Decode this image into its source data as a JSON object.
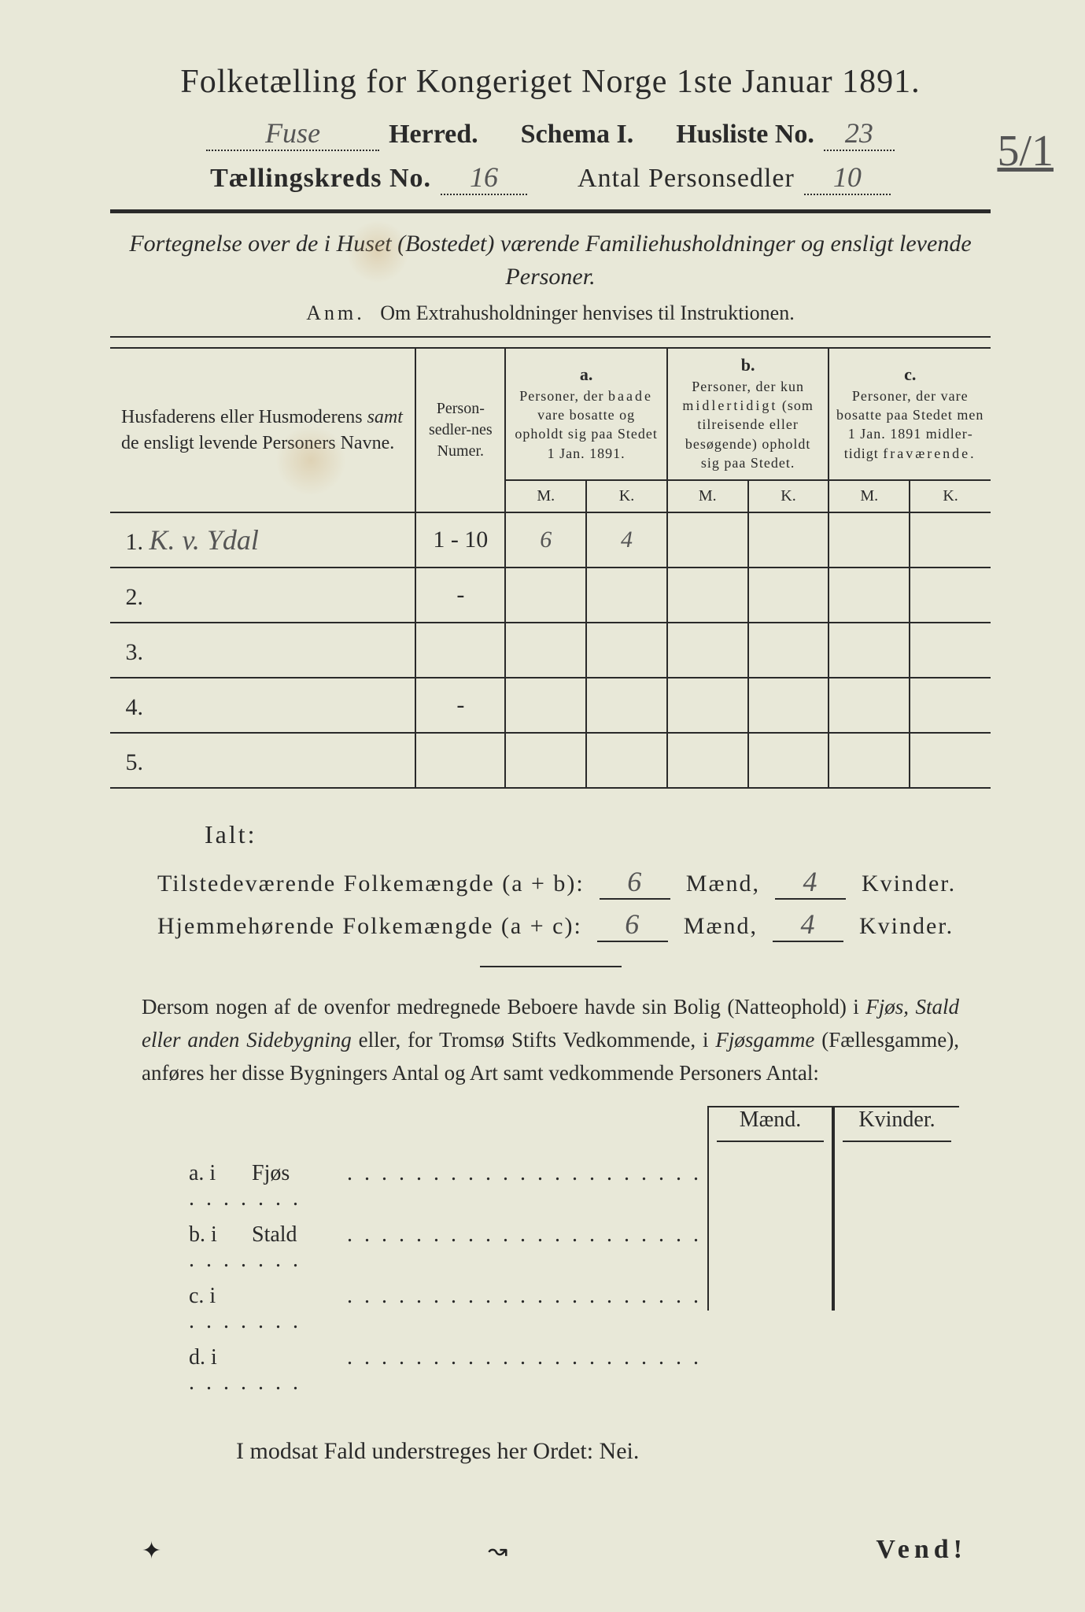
{
  "title": "Folketælling for Kongeriget Norge 1ste Januar 1891.",
  "header": {
    "herred_hand": "Fuse",
    "herred_label": "Herred.",
    "schema": "Schema I.",
    "husliste_label": "Husliste No.",
    "husliste_hand": "23",
    "kreds_label": "Tællingskreds No.",
    "kreds_hand": "16",
    "antal_label": "Antal Personsedler",
    "antal_hand": "10",
    "side_annotation": "5/1"
  },
  "subtitle": "Fortegnelse over de i Huset (Bostedet) værende Familiehusholdninger og ensligt levende Personer.",
  "anm_prefix": "Anm.",
  "anm_text": "Om Extrahusholdninger henvises til Instruktionen.",
  "table": {
    "col_name": "Husfaderens eller Husmoderens samt de ensligt levende Personers Navne.",
    "col_num": "Person-sedler-nes Numer.",
    "col_a_letter": "a.",
    "col_a": "Personer, der baade vare bosatte og opholdt sig paa Stedet 1 Jan. 1891.",
    "col_b_letter": "b.",
    "col_b": "Personer, der kun midlertidigt (som tilreisende eller besøgende) opholdt sig paa Stedet.",
    "col_c_letter": "c.",
    "col_c": "Personer, der vare bosatte paa Stedet men 1 Jan. 1891 midlertidigt fraværende.",
    "M": "M.",
    "K": "K.",
    "rows": [
      {
        "n": "1.",
        "name": "K. v. Ydal",
        "num": "1 - 10",
        "aM": "6",
        "aK": "4",
        "bM": "",
        "bK": "",
        "cM": "",
        "cK": ""
      },
      {
        "n": "2.",
        "name": "",
        "num": "-",
        "aM": "",
        "aK": "",
        "bM": "",
        "bK": "",
        "cM": "",
        "cK": ""
      },
      {
        "n": "3.",
        "name": "",
        "num": "",
        "aM": "",
        "aK": "",
        "bM": "",
        "bK": "",
        "cM": "",
        "cK": ""
      },
      {
        "n": "4.",
        "name": "",
        "num": "-",
        "aM": "",
        "aK": "",
        "bM": "",
        "bK": "",
        "cM": "",
        "cK": ""
      },
      {
        "n": "5.",
        "name": "",
        "num": "",
        "aM": "",
        "aK": "",
        "bM": "",
        "bK": "",
        "cM": "",
        "cK": ""
      }
    ]
  },
  "ialt": "Ialt:",
  "totals": {
    "line1_label": "Tilstedeværende Folkemængde (a + b):",
    "line2_label": "Hjemmehørende Folkemængde (a + c):",
    "maend": "Mænd,",
    "kvinder": "Kvinder.",
    "t_m": "6",
    "t_k": "4",
    "h_m": "6",
    "h_k": "4"
  },
  "para": "Dersom nogen af de ovenfor medregnede Beboere havde sin Bolig (Natteophold) i Fjøs, Stald eller anden Sidebygning eller, for Tromsø Stifts Vedkommende, i Fjøsgamme (Fællesgamme), anføres her disse Bygningers Antal og Art samt vedkommende Personers Antal:",
  "btable": {
    "maend": "Mænd.",
    "kvinder": "Kvinder.",
    "rows": [
      {
        "k": "a.  i",
        "label": "Fjøs"
      },
      {
        "k": "b.  i",
        "label": "Stald"
      },
      {
        "k": "c.  i",
        "label": ""
      },
      {
        "k": "d.  i",
        "label": ""
      }
    ]
  },
  "nei": "I modsat Fald understreges her Ordet: Nei.",
  "vend": "Vend!",
  "colors": {
    "paper": "#e8e8d8",
    "ink": "#2a2a2a",
    "pencil": "#555555",
    "stain": "#c8a064"
  }
}
